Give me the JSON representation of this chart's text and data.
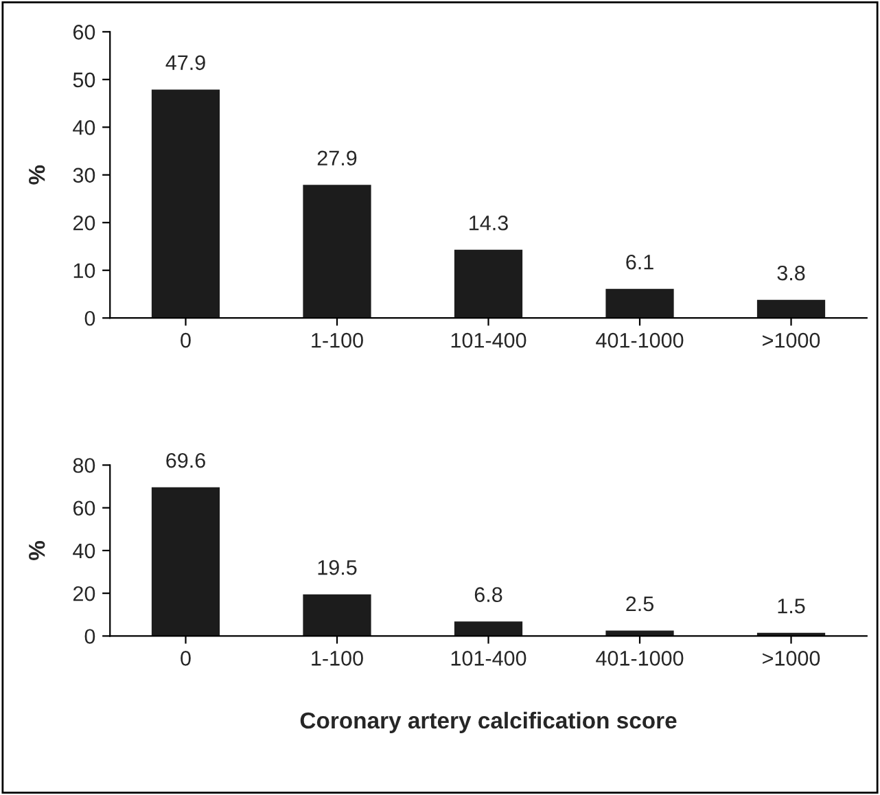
{
  "chart_data": [
    {
      "type": "bar",
      "ylabel": "%",
      "categories": [
        "0",
        "1-100",
        "101-400",
        "401-1000",
        ">1000"
      ],
      "values": [
        47.9,
        27.9,
        14.3,
        6.1,
        3.8
      ],
      "color": "#1c1c1c",
      "ylim": [
        0,
        60
      ],
      "yticks": [
        0,
        10,
        20,
        30,
        40,
        50,
        60
      ],
      "data_labels": true,
      "grid": false,
      "legend": false
    },
    {
      "type": "bar",
      "ylabel": "%",
      "xlabel": "Coronary artery calcification score",
      "categories": [
        "0",
        "1-100",
        "101-400",
        "401-1000",
        ">1000"
      ],
      "values": [
        69.6,
        19.5,
        6.8,
        2.5,
        1.5
      ],
      "color": "#1c1c1c",
      "ylim": [
        0,
        80
      ],
      "yticks": [
        0,
        20,
        40,
        60,
        80
      ],
      "data_labels": true,
      "grid": false,
      "legend": false
    }
  ]
}
